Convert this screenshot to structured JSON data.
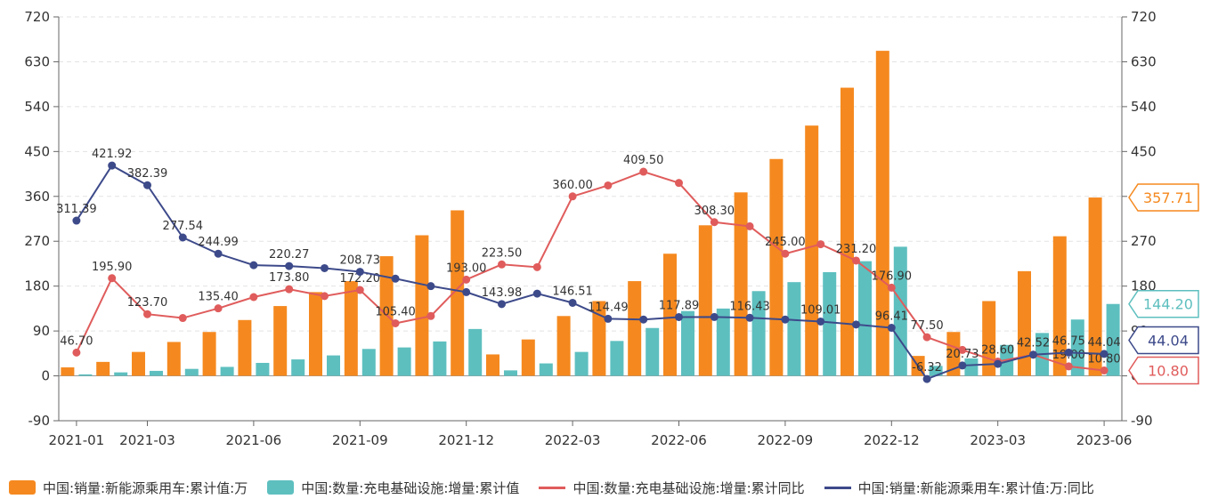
{
  "chart_data": {
    "type": "bar",
    "categories": [
      "2021-01",
      "2021-02",
      "2021-03",
      "2021-04",
      "2021-05",
      "2021-06",
      "2021-07",
      "2021-08",
      "2021-09",
      "2021-10",
      "2021-11",
      "2021-12",
      "2022-01",
      "2022-02",
      "2022-03",
      "2022-04",
      "2022-05",
      "2022-06",
      "2022-07",
      "2022-08",
      "2022-09",
      "2022-10",
      "2022-11",
      "2022-12",
      "2023-01",
      "2023-02",
      "2023-03",
      "2023-04",
      "2023-05",
      "2023-06"
    ],
    "x_tick_labels": [
      "2021-01",
      "2021-03",
      "2021-06",
      "2021-09",
      "2021-12",
      "2022-03",
      "2022-06",
      "2022-09",
      "2022-12",
      "2023-03",
      "2023-06"
    ],
    "y_ticks": [
      "720",
      "630",
      "540",
      "450",
      "360",
      "270",
      "180",
      "90",
      "0",
      "-90"
    ],
    "ylim": [
      -90,
      720
    ],
    "grid": true,
    "legend_position": "bottom",
    "series": [
      {
        "name": "中国:销量:新能源乘用车:累计值:万",
        "kind": "bar",
        "color": "#f5891f",
        "values": [
          17,
          28,
          48,
          68,
          88,
          112,
          140,
          168,
          190,
          240,
          282,
          332,
          43,
          73,
          120,
          150,
          190,
          245,
          302,
          368,
          435,
          502,
          578,
          652,
          40,
          88,
          150,
          210,
          280,
          357.71
        ],
        "end_badge": "357.71"
      },
      {
        "name": "中国:数量:充电基础设施:增量:累计值",
        "kind": "bar",
        "color": "#5ebfbf",
        "values": [
          3,
          7,
          10,
          14,
          18,
          26,
          33,
          41,
          54,
          57,
          69,
          94,
          11,
          25,
          48,
          70,
          96,
          130,
          135,
          170,
          188,
          208,
          230,
          259,
          20,
          35,
          62,
          86,
          113,
          144.2
        ],
        "end_badge": "144.20"
      },
      {
        "name": "中国:数量:充电基础设施:增量:累计同比",
        "kind": "line",
        "color": "#e05c5c",
        "values": [
          46.7,
          195.9,
          123.7,
          116,
          135.4,
          158,
          173.8,
          160,
          172.2,
          105.4,
          120,
          193.0,
          223.5,
          218,
          360.0,
          382,
          409.5,
          387,
          308.3,
          300,
          245.0,
          264,
          231.2,
          176.9,
          77.5,
          52,
          28.6,
          42.52,
          19.0,
          10.8
        ],
        "labels": [
          "46.70",
          "195.90",
          "123.70",
          "",
          "135.40",
          "",
          "173.80",
          "",
          "172.20",
          "105.40",
          "",
          "193.00",
          "223.50",
          "",
          "360.00",
          "",
          "409.50",
          "",
          "308.30",
          "",
          "245.00",
          "",
          "231.20",
          "176.90",
          "77.50",
          "",
          "28.60",
          "",
          "19.00",
          "10.80"
        ],
        "end_badge": "10.80"
      },
      {
        "name": "中国:销量:新能源乘用车:累计值:万:同比",
        "kind": "line",
        "color": "#3d4a8a",
        "values": [
          311.39,
          421.92,
          382.39,
          277.54,
          244.99,
          222,
          220.27,
          216,
          208.73,
          195,
          180,
          168,
          143.98,
          165,
          146.51,
          114.49,
          113,
          117.89,
          118,
          116.43,
          113,
          109.01,
          103,
          96.41,
          -6.32,
          20.73,
          24,
          42.52,
          46.75,
          44.04
        ],
        "labels": [
          "311.39",
          "421.92",
          "382.39",
          "277.54",
          "244.99",
          "",
          "220.27",
          "",
          "208.73",
          "",
          "",
          "",
          "143.98",
          "",
          "146.51",
          "114.49",
          "",
          "117.89",
          "",
          "116.43",
          "",
          "109.01",
          "",
          "96.41",
          "-6.32",
          "20.73",
          "",
          "42.52",
          "46.75",
          "44.04"
        ],
        "end_badge": "44.04"
      }
    ]
  }
}
